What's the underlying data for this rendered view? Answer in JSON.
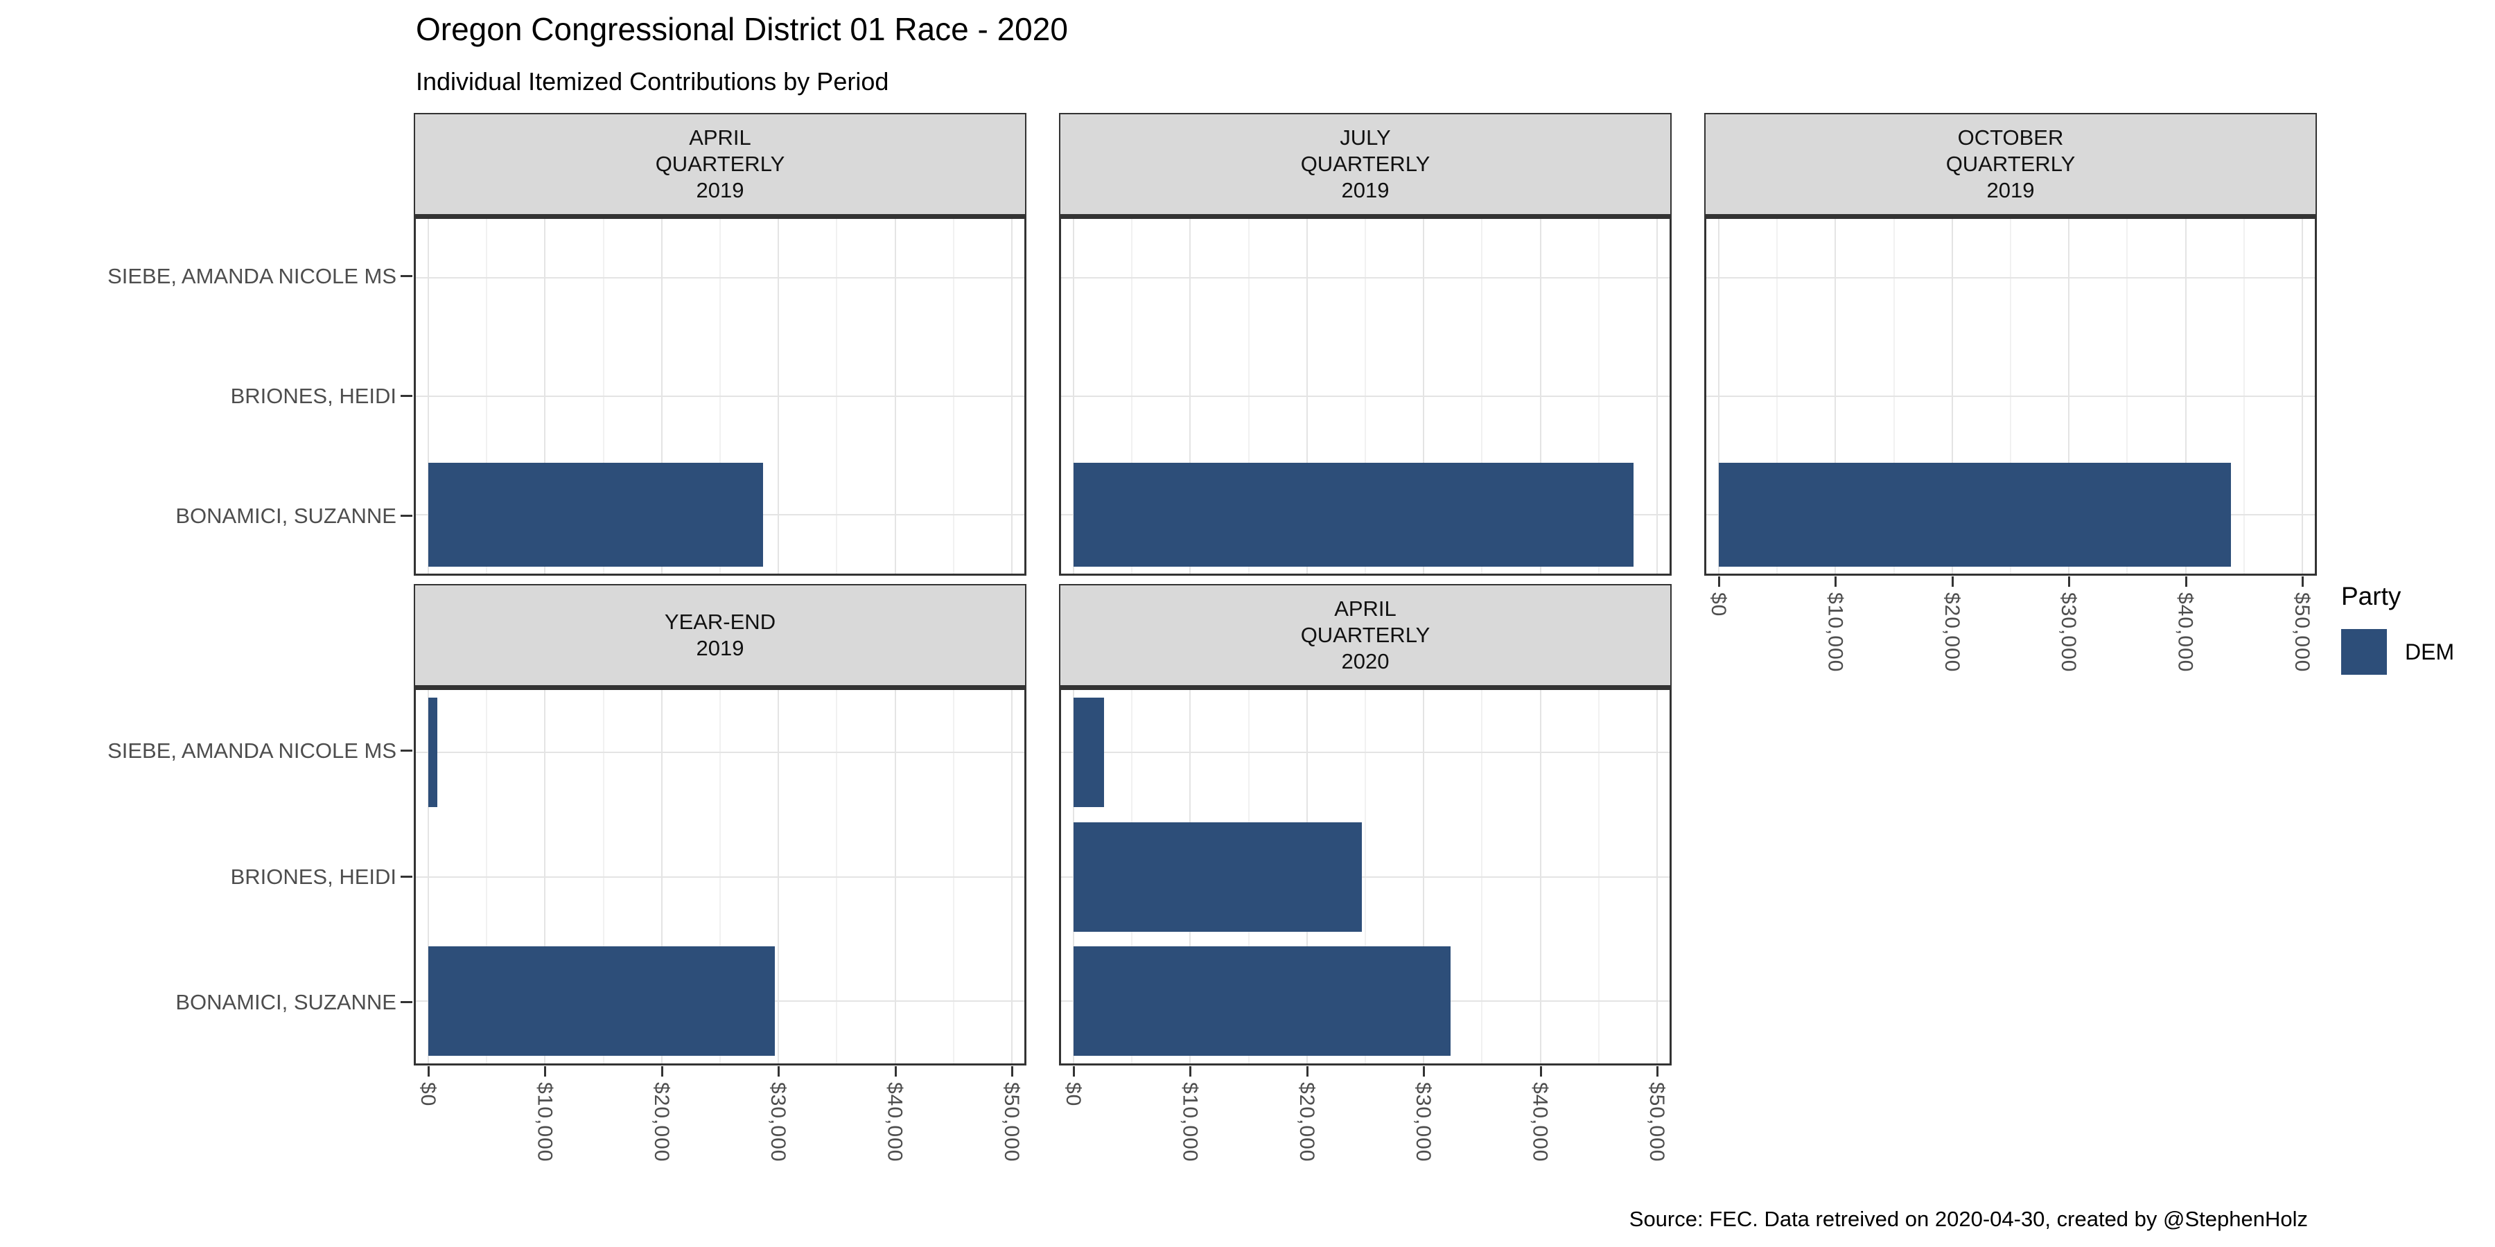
{
  "chart_data": {
    "type": "bar",
    "orientation": "horizontal",
    "title": "Oregon Congressional District 01 Race - 2020",
    "subtitle": "Individual Itemized Contributions by Period",
    "caption": "Source: FEC. Data retreived on 2020-04-30, created by @StephenHolz",
    "categories": [
      "SIEBE, AMANDA NICOLE MS",
      "BRIONES, HEIDI",
      "BONAMICI, SUZANNE"
    ],
    "xlim": [
      0,
      50000
    ],
    "x_major_ticks": [
      0,
      10000,
      20000,
      30000,
      40000,
      50000
    ],
    "x_tick_labels": [
      "$0",
      "$10,000",
      "$20,000",
      "$30,000",
      "$40,000",
      "$50,000"
    ],
    "x_minor_ticks": [
      5000,
      15000,
      25000,
      35000,
      45000
    ],
    "grid": true,
    "legend_position": "right",
    "legend_title": "Party",
    "series_name": "DEM",
    "facets": [
      {
        "label_lines": [
          "APRIL",
          "QUARTERLY",
          "2019"
        ],
        "row": 0,
        "col": 0,
        "show_x_axis": false,
        "values": [
          0,
          0,
          28700
        ]
      },
      {
        "label_lines": [
          "JULY",
          "QUARTERLY",
          "2019"
        ],
        "row": 0,
        "col": 1,
        "show_x_axis": false,
        "values": [
          0,
          0,
          48000
        ]
      },
      {
        "label_lines": [
          "OCTOBER",
          "QUARTERLY",
          "2019"
        ],
        "row": 0,
        "col": 2,
        "show_x_axis": true,
        "values": [
          0,
          0,
          43900
        ]
      },
      {
        "label_lines": [
          "YEAR-END",
          "2019"
        ],
        "row": 1,
        "col": 0,
        "show_x_axis": true,
        "values": [
          800,
          0,
          29700
        ]
      },
      {
        "label_lines": [
          "APRIL",
          "QUARTERLY",
          "2020"
        ],
        "row": 1,
        "col": 1,
        "show_x_axis": true,
        "values": [
          2600,
          24700,
          32300
        ]
      }
    ]
  },
  "legend": {
    "title": "Party",
    "items": [
      {
        "label": "DEM",
        "color": "#2D4E79"
      }
    ]
  },
  "colors": {
    "bar": "#2D4E79",
    "strip_bg": "#D9D9D9",
    "panel_border": "#333333",
    "grid_major": "#E4E4E4",
    "grid_minor": "#F1F1F1",
    "axis_text": "#4D4D4D",
    "tick": "#333333"
  }
}
